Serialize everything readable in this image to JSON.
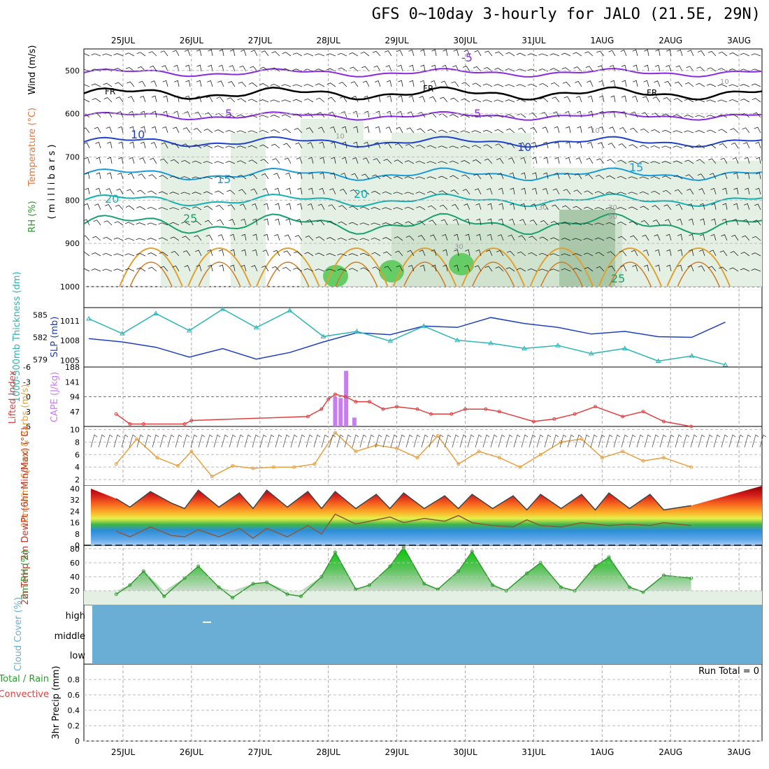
{
  "title": "GFS 0~10day 3-hourly for JALO (21.5E, 29N)",
  "dates": [
    "25JUL",
    "26JUL",
    "27JUL",
    "28JUL",
    "29JUL",
    "30JUL",
    "31JUL",
    "1AUG",
    "2AUG",
    "3AUG"
  ],
  "panels": {
    "upper": {
      "ylabel_parts": [
        "RH (%)",
        "Temperature (°C)",
        "Wind (m/s)"
      ],
      "ylabel_colors": [
        "#2b9b2b",
        "#e8743b",
        "#000000"
      ],
      "ylabel2": "( m i l l i b a r s )",
      "yticks": [
        "500",
        "600",
        "700",
        "800",
        "900",
        "1000"
      ],
      "contour_labels": {
        "temperature": [
          "-5",
          "5",
          "5",
          "10",
          "10",
          "15",
          "15",
          "20",
          "20",
          "25",
          "25"
        ],
        "freezing": [
          "FR",
          "FR",
          "FR"
        ],
        "rh": [
          "10",
          "10",
          "10",
          "30",
          "30",
          "50",
          "30"
        ]
      }
    },
    "thickness": {
      "ylabel_left": "1000-500mb Thickness (dm)",
      "ylabel_right": "SLP (mb)",
      "yticks_left": [
        "585",
        "582",
        "579"
      ],
      "yticks_right": [
        "1011",
        "1008",
        "1005"
      ]
    },
    "cape": {
      "ylabel_left": "Lifted Index",
      "ylabel_right": "CAPE (J/kg)",
      "yticks_left": [
        "-6",
        "-3",
        "0",
        "3",
        "6"
      ],
      "yticks_right": [
        "188",
        "141",
        "94",
        "47"
      ]
    },
    "wind10m": {
      "ylabel": "10m Wind Speed & Barbs (m/s)",
      "yticks": [
        "10",
        "8",
        "6",
        "4",
        "2"
      ]
    },
    "temp2m": {
      "ylabel": "2m Temp 2m DewPt (6hr Min/Max) (°C)",
      "yticks": [
        "40",
        "32",
        "24",
        "16",
        "8",
        "0"
      ]
    },
    "rh2m": {
      "ylabel": "2m RH (%)",
      "yticks": [
        "80",
        "60",
        "40",
        "20"
      ]
    },
    "cloud": {
      "ylabel": "Cloud Cover (%)",
      "levels": [
        "high",
        "middle",
        "low"
      ]
    },
    "precip": {
      "ylabel_a": "Total / Rain",
      "ylabel_b": "Convective",
      "ylabel_c": "3hr Precip (mm)",
      "yticks": [
        "0.8",
        "0.6",
        "0.4",
        "0.2",
        "0"
      ],
      "run_total": "Run Total = 0"
    }
  },
  "colors": {
    "slp": "#1f3fbf",
    "thickness": "#2ab5b5",
    "lifted_index": "#e04040",
    "cape": "#c77df0",
    "wind10m": "#e8a040",
    "temp2m": "#555555",
    "rh2m": "#2f9a2f",
    "cloud": "#6aaed6"
  },
  "chart_data": [
    {
      "type": "line",
      "title": "1000-500mb Thickness (dm) / SLP (mb)",
      "x": [
        "25JUL",
        "25.5",
        "26JUL",
        "26.5",
        "27JUL",
        "27.5",
        "28JUL",
        "28.5",
        "29JUL",
        "29.5",
        "30JUL",
        "30.5",
        "31JUL",
        "31.5",
        "1AUG",
        "1.5",
        "2AUG",
        "2.5",
        "3AUG",
        "3.3"
      ],
      "series": [
        {
          "name": "SLP (mb)",
          "values": [
            1008.3,
            1007.8,
            1007.0,
            1005.5,
            1006.8,
            1005.2,
            1006.2,
            1007.8,
            1009.2,
            1008.9,
            1010.2,
            1010.0,
            1011.5,
            1010.6,
            1010.0,
            1009.0,
            1009.4,
            1008.6,
            1008.5,
            1010.8
          ]
        },
        {
          "name": "Thickness (dm)",
          "values": [
            584.5,
            582.5,
            585.2,
            582.9,
            585.8,
            583.3,
            585.6,
            582.1,
            582.8,
            581.5,
            583.5,
            581.6,
            581.2,
            580.5,
            580.9,
            579.8,
            580.5,
            578.8,
            579.5,
            578.3
          ]
        }
      ],
      "ylim_left": [
        578,
        586
      ],
      "ylim_right": [
        1004,
        1013
      ]
    },
    {
      "type": "bar",
      "title": "CAPE (J/kg)",
      "categories": [
        "28.10",
        "28.18",
        "28.26",
        "28.38"
      ],
      "values": [
        94,
        90,
        176,
        28
      ],
      "ylim": [
        0,
        188
      ]
    },
    {
      "type": "line",
      "title": "Lifted Index",
      "x": [
        "24.9",
        "25.1",
        "25.3",
        "25.9",
        "26.0",
        "27.7",
        "27.9",
        "28.0",
        "28.1",
        "28.25",
        "28.4",
        "28.6",
        "28.8",
        "29.0",
        "29.3",
        "29.5",
        "29.8",
        "30.0",
        "30.3",
        "30.5",
        "31.0",
        "31.3",
        "31.6",
        "31.9",
        "32.3",
        "32.6",
        "32.9",
        "33.3"
      ],
      "series": [
        {
          "name": "Lifted Index",
          "values": [
            3.5,
            5.5,
            5.5,
            5.5,
            4.8,
            4,
            2.5,
            0.5,
            -0.5,
            0,
            1,
            1,
            2.5,
            2,
            2.5,
            3.5,
            3.5,
            2.5,
            2.5,
            3,
            5,
            4.5,
            3.5,
            2,
            4,
            3,
            5,
            6
          ]
        }
      ],
      "ylim": [
        6,
        -6
      ]
    },
    {
      "type": "line",
      "title": "10m Wind Speed (m/s)",
      "x": [
        "24.9",
        "25.2",
        "25.5",
        "25.8",
        "26.0",
        "26.3",
        "26.6",
        "26.9",
        "27.2",
        "27.5",
        "27.8",
        "28.1",
        "28.4",
        "28.7",
        "29.0",
        "29.3",
        "29.6",
        "29.9",
        "30.2",
        "30.5",
        "30.8",
        "31.1",
        "31.4",
        "31.7",
        "32.0",
        "32.3",
        "32.6",
        "32.9",
        "33.3"
      ],
      "series": [
        {
          "name": "10m Wind Speed",
          "values": [
            4.5,
            8.5,
            5.5,
            4.2,
            6.5,
            2.5,
            4.2,
            3.8,
            4,
            4,
            4.5,
            9.5,
            6.5,
            7.5,
            7,
            5.5,
            9,
            4.5,
            6.5,
            5.5,
            4,
            6,
            8,
            8.5,
            5.5,
            6.5,
            5,
            5.5,
            4
          ]
        }
      ],
      "ylim": [
        2,
        10
      ]
    },
    {
      "type": "area",
      "title": "2m Temp / 2m DewPt (°C)",
      "x": [
        "24.9",
        "25.1",
        "25.4",
        "25.7",
        "25.9",
        "26.1",
        "26.4",
        "26.7",
        "26.9",
        "27.1",
        "27.4",
        "27.7",
        "27.9",
        "28.1",
        "28.4",
        "28.7",
        "28.9",
        "29.1",
        "29.4",
        "29.7",
        "29.9",
        "30.1",
        "30.4",
        "30.7",
        "30.9",
        "31.1",
        "31.4",
        "31.7",
        "31.9",
        "32.1",
        "32.4",
        "32.7",
        "32.9",
        "33.3"
      ],
      "series": [
        {
          "name": "2m Temp",
          "values": [
            33,
            27,
            38,
            30,
            26,
            39,
            27,
            37,
            26,
            39,
            27,
            38,
            26,
            38,
            26,
            36,
            26,
            37,
            26,
            35,
            26,
            36,
            26,
            35,
            25,
            36,
            26,
            36,
            25,
            37,
            26,
            36,
            25,
            28
          ]
        },
        {
          "name": "2m DewPt",
          "values": [
            10,
            6,
            13,
            7,
            6,
            11,
            6,
            12,
            5,
            12,
            6,
            14,
            8,
            22,
            15,
            18,
            20,
            16,
            19,
            17,
            21,
            16,
            14,
            13,
            18,
            14,
            13,
            16,
            15,
            14,
            15,
            14,
            16,
            14
          ]
        }
      ],
      "ylim": [
        0,
        42
      ]
    },
    {
      "type": "area",
      "title": "2m RH (%)",
      "x": [
        "24.9",
        "25.1",
        "25.3",
        "25.6",
        "25.9",
        "26.1",
        "26.4",
        "26.6",
        "26.9",
        "27.1",
        "27.4",
        "27.6",
        "27.9",
        "28.1",
        "28.4",
        "28.6",
        "28.9",
        "29.1",
        "29.4",
        "29.6",
        "29.9",
        "30.1",
        "30.4",
        "30.6",
        "30.9",
        "31.1",
        "31.4",
        "31.6",
        "31.9",
        "32.1",
        "32.4",
        "32.6",
        "32.9",
        "33.3"
      ],
      "series": [
        {
          "name": "2m RH",
          "values": [
            15,
            28,
            48,
            12,
            38,
            55,
            25,
            10,
            30,
            32,
            15,
            12,
            40,
            75,
            22,
            28,
            55,
            82,
            30,
            22,
            48,
            76,
            28,
            20,
            45,
            60,
            25,
            20,
            55,
            68,
            25,
            18,
            42,
            38
          ]
        }
      ],
      "ylim": [
        0,
        85
      ]
    },
    {
      "type": "area",
      "title": "Cloud Cover (%)",
      "categories": [
        "high",
        "middle",
        "low"
      ],
      "values": [
        0,
        0,
        0
      ]
    },
    {
      "type": "bar",
      "title": "3hr Precip (mm)",
      "categories": [
        "Run Total"
      ],
      "values": [
        0
      ],
      "ylim": [
        0,
        1
      ]
    }
  ]
}
